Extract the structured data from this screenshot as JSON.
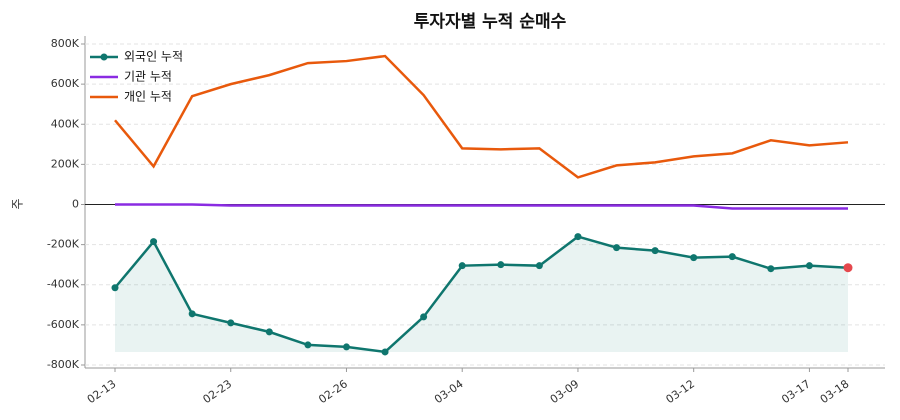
{
  "chart_data": {
    "type": "line",
    "title": "투자자별 누적 순매수",
    "y_label": "주",
    "categories": [
      "02-13",
      null,
      null,
      "02-23",
      null,
      null,
      "02-26",
      null,
      null,
      "03-04",
      null,
      null,
      "03-09",
      null,
      null,
      "03-12",
      null,
      null,
      "03-17",
      "03-18"
    ],
    "series": [
      {
        "name": "외국인 누적",
        "color": "#0f766e",
        "markers": true,
        "fill": true,
        "values": [
          -415000,
          -185000,
          -545000,
          -590000,
          -635000,
          -700000,
          -710000,
          -735000,
          -560000,
          -305000,
          -300000,
          -305000,
          -160000,
          -215000,
          -230000,
          -265000,
          -260000,
          -320000,
          -305000,
          -315000
        ]
      },
      {
        "name": "기관 누적",
        "color": "#8a2be2",
        "values": [
          0,
          0,
          0,
          -5000,
          -5000,
          -5000,
          -5000,
          -5000,
          -5000,
          -5000,
          -5000,
          -5000,
          -5000,
          -5000,
          -5000,
          -5000,
          -20000,
          -20000,
          -20000,
          -20000
        ]
      },
      {
        "name": "개인 누적",
        "color": "#e8590c",
        "values": [
          420000,
          190000,
          540000,
          600000,
          645000,
          705000,
          715000,
          740000,
          545000,
          280000,
          275000,
          280000,
          135000,
          195000,
          210000,
          240000,
          255000,
          320000,
          295000,
          310000
        ]
      }
    ],
    "last_point_color": "#e5484d",
    "ylim": [
      -820000,
      820000
    ],
    "yticks": [
      {
        "value": -800000,
        "label": "-800K"
      },
      {
        "value": -600000,
        "label": "-600K"
      },
      {
        "value": -400000,
        "label": "-400K"
      },
      {
        "value": -200000,
        "label": "-200K"
      },
      0,
      {
        "value": 200000,
        "label": "200K"
      },
      {
        "value": 400000,
        "label": "400K"
      },
      {
        "value": 600000,
        "label": "600K"
      },
      {
        "value": 800000,
        "label": "800K"
      }
    ],
    "grid": true,
    "legend": "upper-left"
  }
}
